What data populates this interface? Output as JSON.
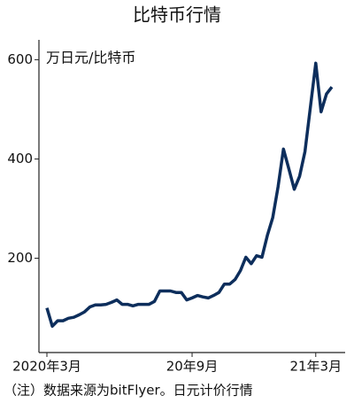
{
  "chart_data": {
    "type": "line",
    "title": "比特币行情",
    "y_label": "万日元/比特币",
    "note": "（注）数据来源为bitFlyer。日元计价行情",
    "categories": [
      "2020年3月",
      null,
      null,
      null,
      null,
      null,
      null,
      null,
      null,
      null,
      null,
      null,
      null,
      null,
      null,
      null,
      null,
      null,
      null,
      null,
      null,
      null,
      null,
      null,
      null,
      null,
      null,
      "20年9月",
      null,
      null,
      null,
      null,
      null,
      null,
      null,
      null,
      null,
      null,
      null,
      null,
      null,
      null,
      null,
      null,
      null,
      null,
      null,
      null,
      null,
      null,
      "21年3月",
      null,
      null,
      null
    ],
    "series": [
      {
        "name": "比特币",
        "color": "#0d2e5c",
        "values": [
          100,
          63,
          74,
          74,
          79,
          81,
          86,
          92,
          102,
          106,
          106,
          107,
          111,
          116,
          107,
          107,
          104,
          107,
          107,
          107,
          113,
          134,
          134,
          134,
          131,
          131,
          116,
          120,
          125,
          122,
          120,
          125,
          131,
          148,
          148,
          157,
          175,
          202,
          189,
          205,
          202,
          246,
          282,
          344,
          420,
          380,
          339,
          365,
          415,
          504,
          593,
          495,
          531,
          545
        ]
      }
    ],
    "ylim": [
      10,
      640
    ],
    "yticks": [
      200,
      400,
      600
    ]
  }
}
